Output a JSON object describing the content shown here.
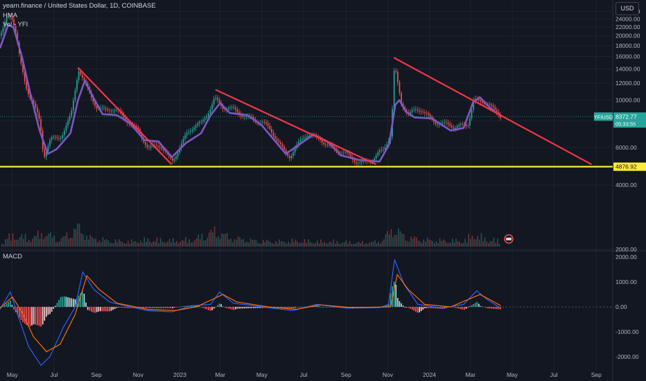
{
  "header": {
    "title": "yearn.finance / United States Dollar, 1D, COINBASE",
    "indicator_hma": "HMA",
    "indicator_vol": "Vol · YFI",
    "indicator_macd": "MACD",
    "currency": "USD"
  },
  "price_tags": {
    "symbol": "YFIUSD",
    "last_price": "8372.77",
    "countdown": "05:33:55",
    "support": "4876.92"
  },
  "colors": {
    "background": "#131722",
    "grid": "#1e222d",
    "up": "#26a69a",
    "down": "#ef5350",
    "hma": "#7e57c2",
    "trendline": "#f23645",
    "support": "#ffeb3b",
    "macd_line": "#2962ff",
    "signal_line": "#ff6d00",
    "text": "#b2b5be"
  },
  "chart_data": [
    {
      "type": "line",
      "name": "price",
      "y_scale": "log",
      "ylim": [
        2000,
        26500
      ],
      "y_ticks": [
        "26000.00",
        "24000.00",
        "22000.00",
        "20000.00",
        "18000.00",
        "16000.00",
        "14000.00",
        "12000.00",
        "10000.00",
        "8000.00",
        "6000.00",
        "4000.00",
        "2000.00"
      ],
      "x_ticks": [
        "May",
        "Jul",
        "Sep",
        "Nov",
        "2023",
        "Mar",
        "May",
        "Jul",
        "Sep",
        "Nov",
        "2024",
        "Mar",
        "May",
        "Jul",
        "Sep"
      ],
      "x_range": [
        "2022-04-13",
        "2024-09-25"
      ],
      "series": [
        {
          "values": [
            {
              "x": "2022-04-15",
              "y": 20000
            },
            {
              "x": "2022-04-22",
              "y": 23500
            },
            {
              "x": "2022-04-29",
              "y": 24500
            },
            {
              "x": "2022-05-05",
              "y": 21000
            },
            {
              "x": "2022-05-12",
              "y": 15500
            },
            {
              "x": "2022-05-20",
              "y": 12000
            },
            {
              "x": "2022-06-01",
              "y": 9500
            },
            {
              "x": "2022-06-10",
              "y": 7500
            },
            {
              "x": "2022-06-15",
              "y": 5200
            },
            {
              "x": "2022-06-25",
              "y": 6500
            },
            {
              "x": "2022-07-10",
              "y": 7000
            },
            {
              "x": "2022-07-25",
              "y": 8500
            },
            {
              "x": "2022-08-05",
              "y": 13500
            },
            {
              "x": "2022-08-12",
              "y": 12000
            },
            {
              "x": "2022-08-20",
              "y": 11000
            },
            {
              "x": "2022-09-01",
              "y": 9500
            },
            {
              "x": "2022-09-20",
              "y": 9000
            },
            {
              "x": "2022-10-15",
              "y": 8000
            },
            {
              "x": "2022-11-01",
              "y": 7500
            },
            {
              "x": "2022-11-15",
              "y": 5800
            },
            {
              "x": "2022-12-01",
              "y": 6000
            },
            {
              "x": "2022-12-20",
              "y": 5400
            },
            {
              "x": "2023-01-10",
              "y": 6800
            },
            {
              "x": "2023-02-01",
              "y": 7800
            },
            {
              "x": "2023-02-20",
              "y": 10500
            },
            {
              "x": "2023-03-05",
              "y": 9000
            },
            {
              "x": "2023-03-20",
              "y": 8800
            },
            {
              "x": "2023-04-15",
              "y": 8500
            },
            {
              "x": "2023-05-10",
              "y": 7200
            },
            {
              "x": "2023-06-10",
              "y": 5600
            },
            {
              "x": "2023-07-05",
              "y": 6700
            },
            {
              "x": "2023-07-25",
              "y": 6800
            },
            {
              "x": "2023-08-20",
              "y": 5600
            },
            {
              "x": "2023-09-15",
              "y": 5300
            },
            {
              "x": "2023-10-10",
              "y": 5200
            },
            {
              "x": "2023-10-25",
              "y": 5700
            },
            {
              "x": "2023-11-05",
              "y": 7000
            },
            {
              "x": "2023-11-10",
              "y": 15000
            },
            {
              "x": "2023-11-20",
              "y": 10000
            },
            {
              "x": "2023-12-01",
              "y": 8500
            },
            {
              "x": "2023-12-20",
              "y": 8800
            },
            {
              "x": "2024-01-15",
              "y": 8000
            },
            {
              "x": "2024-02-05",
              "y": 7200
            },
            {
              "x": "2024-02-25",
              "y": 7800
            },
            {
              "x": "2024-03-05",
              "y": 10500
            },
            {
              "x": "2024-03-15",
              "y": 9800
            },
            {
              "x": "2024-03-25",
              "y": 9500
            },
            {
              "x": "2024-04-05",
              "y": 8600
            },
            {
              "x": "2024-04-14",
              "y": 8372.77
            }
          ]
        },
        {
          "name": "HMA",
          "values": [
            {
              "x": "2022-04-13",
              "y": 17500
            },
            {
              "x": "2022-04-25",
              "y": 22500
            },
            {
              "x": "2022-05-03",
              "y": 21800
            },
            {
              "x": "2022-05-15",
              "y": 16000
            },
            {
              "x": "2022-05-28",
              "y": 10500
            },
            {
              "x": "2022-06-10",
              "y": 7200
            },
            {
              "x": "2022-06-22",
              "y": 5600
            },
            {
              "x": "2022-07-05",
              "y": 5900
            },
            {
              "x": "2022-07-25",
              "y": 7000
            },
            {
              "x": "2022-08-05",
              "y": 10000
            },
            {
              "x": "2022-08-15",
              "y": 12300
            },
            {
              "x": "2022-08-28",
              "y": 10200
            },
            {
              "x": "2022-09-10",
              "y": 8600
            },
            {
              "x": "2022-10-01",
              "y": 8500
            },
            {
              "x": "2022-10-20",
              "y": 7800
            },
            {
              "x": "2022-11-10",
              "y": 6500
            },
            {
              "x": "2022-12-01",
              "y": 6400
            },
            {
              "x": "2022-12-20",
              "y": 5400
            },
            {
              "x": "2023-01-10",
              "y": 6300
            },
            {
              "x": "2023-02-01",
              "y": 7000
            },
            {
              "x": "2023-02-15",
              "y": 8500
            },
            {
              "x": "2023-03-01",
              "y": 9700
            },
            {
              "x": "2023-03-15",
              "y": 8700
            },
            {
              "x": "2023-04-10",
              "y": 8500
            },
            {
              "x": "2023-05-01",
              "y": 7600
            },
            {
              "x": "2023-06-05",
              "y": 5600
            },
            {
              "x": "2023-06-25",
              "y": 6200
            },
            {
              "x": "2023-07-15",
              "y": 6900
            },
            {
              "x": "2023-08-05",
              "y": 6400
            },
            {
              "x": "2023-08-25",
              "y": 5500
            },
            {
              "x": "2023-09-20",
              "y": 5250
            },
            {
              "x": "2023-10-20",
              "y": 5150
            },
            {
              "x": "2023-11-03",
              "y": 6200
            },
            {
              "x": "2023-11-12",
              "y": 9500
            },
            {
              "x": "2023-11-18",
              "y": 10000
            },
            {
              "x": "2023-11-28",
              "y": 8800
            },
            {
              "x": "2023-12-10",
              "y": 8300
            },
            {
              "x": "2024-01-05",
              "y": 8200
            },
            {
              "x": "2024-02-01",
              "y": 7200
            },
            {
              "x": "2024-02-20",
              "y": 7400
            },
            {
              "x": "2024-03-05",
              "y": 9800
            },
            {
              "x": "2024-03-15",
              "y": 10300
            },
            {
              "x": "2024-03-28",
              "y": 9300
            },
            {
              "x": "2024-04-08",
              "y": 8700
            },
            {
              "x": "2024-04-14",
              "y": 8500
            }
          ]
        },
        {
          "name": "Trendline 1",
          "values": [
            {
              "x": "2022-08-05",
              "y": 14200
            },
            {
              "x": "2022-12-20",
              "y": 5000
            }
          ]
        },
        {
          "name": "Trendline 2",
          "values": [
            {
              "x": "2023-02-22",
              "y": 11200
            },
            {
              "x": "2023-10-15",
              "y": 5000
            }
          ]
        },
        {
          "name": "Trendline 3",
          "values": [
            {
              "x": "2023-11-10",
              "y": 15800
            },
            {
              "x": "2024-08-25",
              "y": 5000
            }
          ]
        },
        {
          "name": "Support",
          "values": [
            {
              "x": "2022-04-13",
              "y": 4876.92
            },
            {
              "x": "2024-09-25",
              "y": 4876.92
            }
          ]
        }
      ]
    },
    {
      "type": "bar",
      "name": "volume",
      "description_units": "relative",
      "values": [
        {
          "x": "2022-04-20",
          "y": 0.45
        },
        {
          "x": "2022-05-10",
          "y": 0.55
        },
        {
          "x": "2022-05-25",
          "y": 0.4
        },
        {
          "x": "2022-06-15",
          "y": 0.7
        },
        {
          "x": "2022-07-10",
          "y": 0.35
        },
        {
          "x": "2022-08-05",
          "y": 1.0
        },
        {
          "x": "2022-08-20",
          "y": 0.45
        },
        {
          "x": "2022-09-20",
          "y": 0.3
        },
        {
          "x": "2022-10-20",
          "y": 0.25
        },
        {
          "x": "2022-11-15",
          "y": 0.35
        },
        {
          "x": "2022-12-20",
          "y": 0.3
        },
        {
          "x": "2023-01-20",
          "y": 0.35
        },
        {
          "x": "2023-02-22",
          "y": 0.8
        },
        {
          "x": "2023-03-15",
          "y": 0.45
        },
        {
          "x": "2023-04-20",
          "y": 0.3
        },
        {
          "x": "2023-05-20",
          "y": 0.25
        },
        {
          "x": "2023-06-20",
          "y": 0.3
        },
        {
          "x": "2023-07-20",
          "y": 0.25
        },
        {
          "x": "2023-08-20",
          "y": 0.25
        },
        {
          "x": "2023-09-20",
          "y": 0.2
        },
        {
          "x": "2023-10-20",
          "y": 0.25
        },
        {
          "x": "2023-11-10",
          "y": 0.95
        },
        {
          "x": "2023-11-25",
          "y": 0.5
        },
        {
          "x": "2023-12-20",
          "y": 0.35
        },
        {
          "x": "2024-01-20",
          "y": 0.3
        },
        {
          "x": "2024-02-20",
          "y": 0.3
        },
        {
          "x": "2024-03-05",
          "y": 0.6
        },
        {
          "x": "2024-03-25",
          "y": 0.35
        },
        {
          "x": "2024-04-10",
          "y": 0.3
        }
      ]
    },
    {
      "type": "line",
      "name": "MACD",
      "ylim": [
        -2700,
        2200
      ],
      "y_ticks": [
        "2000.00",
        "1000.00",
        "0.00",
        "-1000.00",
        "-2000.00"
      ],
      "series": [
        {
          "name": "MACD",
          "values": [
            {
              "x": "2022-04-13",
              "y": -100
            },
            {
              "x": "2022-04-28",
              "y": 600
            },
            {
              "x": "2022-05-10",
              "y": -400
            },
            {
              "x": "2022-05-25",
              "y": -1600
            },
            {
              "x": "2022-06-12",
              "y": -2350
            },
            {
              "x": "2022-06-25",
              "y": -2000
            },
            {
              "x": "2022-07-15",
              "y": -800
            },
            {
              "x": "2022-08-01",
              "y": 0
            },
            {
              "x": "2022-08-12",
              "y": 1400
            },
            {
              "x": "2022-08-28",
              "y": 700
            },
            {
              "x": "2022-09-20",
              "y": 200
            },
            {
              "x": "2022-10-20",
              "y": 0
            },
            {
              "x": "2022-11-15",
              "y": -150
            },
            {
              "x": "2022-12-20",
              "y": -200
            },
            {
              "x": "2023-01-20",
              "y": 50
            },
            {
              "x": "2023-02-15",
              "y": 100
            },
            {
              "x": "2023-02-28",
              "y": 600
            },
            {
              "x": "2023-03-20",
              "y": 150
            },
            {
              "x": "2023-05-01",
              "y": 0
            },
            {
              "x": "2023-06-15",
              "y": -150
            },
            {
              "x": "2023-07-20",
              "y": 100
            },
            {
              "x": "2023-09-01",
              "y": -50
            },
            {
              "x": "2023-10-20",
              "y": -30
            },
            {
              "x": "2023-11-02",
              "y": 100
            },
            {
              "x": "2023-11-11",
              "y": 1900
            },
            {
              "x": "2023-11-25",
              "y": 900
            },
            {
              "x": "2023-12-15",
              "y": 100
            },
            {
              "x": "2024-01-20",
              "y": -50
            },
            {
              "x": "2024-02-20",
              "y": 100
            },
            {
              "x": "2024-03-10",
              "y": 650
            },
            {
              "x": "2024-03-25",
              "y": 300
            },
            {
              "x": "2024-04-14",
              "y": -50
            }
          ]
        },
        {
          "name": "Signal",
          "values": [
            {
              "x": "2022-04-13",
              "y": -50
            },
            {
              "x": "2022-05-01",
              "y": 400
            },
            {
              "x": "2022-05-15",
              "y": -200
            },
            {
              "x": "2022-06-01",
              "y": -1200
            },
            {
              "x": "2022-06-20",
              "y": -1800
            },
            {
              "x": "2022-07-10",
              "y": -1500
            },
            {
              "x": "2022-08-01",
              "y": -300
            },
            {
              "x": "2022-08-18",
              "y": 1250
            },
            {
              "x": "2022-09-05",
              "y": 700
            },
            {
              "x": "2022-10-01",
              "y": 150
            },
            {
              "x": "2022-11-15",
              "y": -100
            },
            {
              "x": "2022-12-25",
              "y": -150
            },
            {
              "x": "2023-01-25",
              "y": 0
            },
            {
              "x": "2023-03-05",
              "y": 500
            },
            {
              "x": "2023-03-25",
              "y": 200
            },
            {
              "x": "2023-05-10",
              "y": 0
            },
            {
              "x": "2023-06-20",
              "y": -100
            },
            {
              "x": "2023-07-25",
              "y": 80
            },
            {
              "x": "2023-09-10",
              "y": -30
            },
            {
              "x": "2023-11-05",
              "y": 0
            },
            {
              "x": "2023-11-15",
              "y": 1300
            },
            {
              "x": "2023-12-01",
              "y": 700
            },
            {
              "x": "2023-12-25",
              "y": 100
            },
            {
              "x": "2024-02-01",
              "y": 0
            },
            {
              "x": "2024-03-15",
              "y": 500
            },
            {
              "x": "2024-04-01",
              "y": 250
            },
            {
              "x": "2024-04-14",
              "y": 50
            }
          ]
        }
      ]
    }
  ]
}
